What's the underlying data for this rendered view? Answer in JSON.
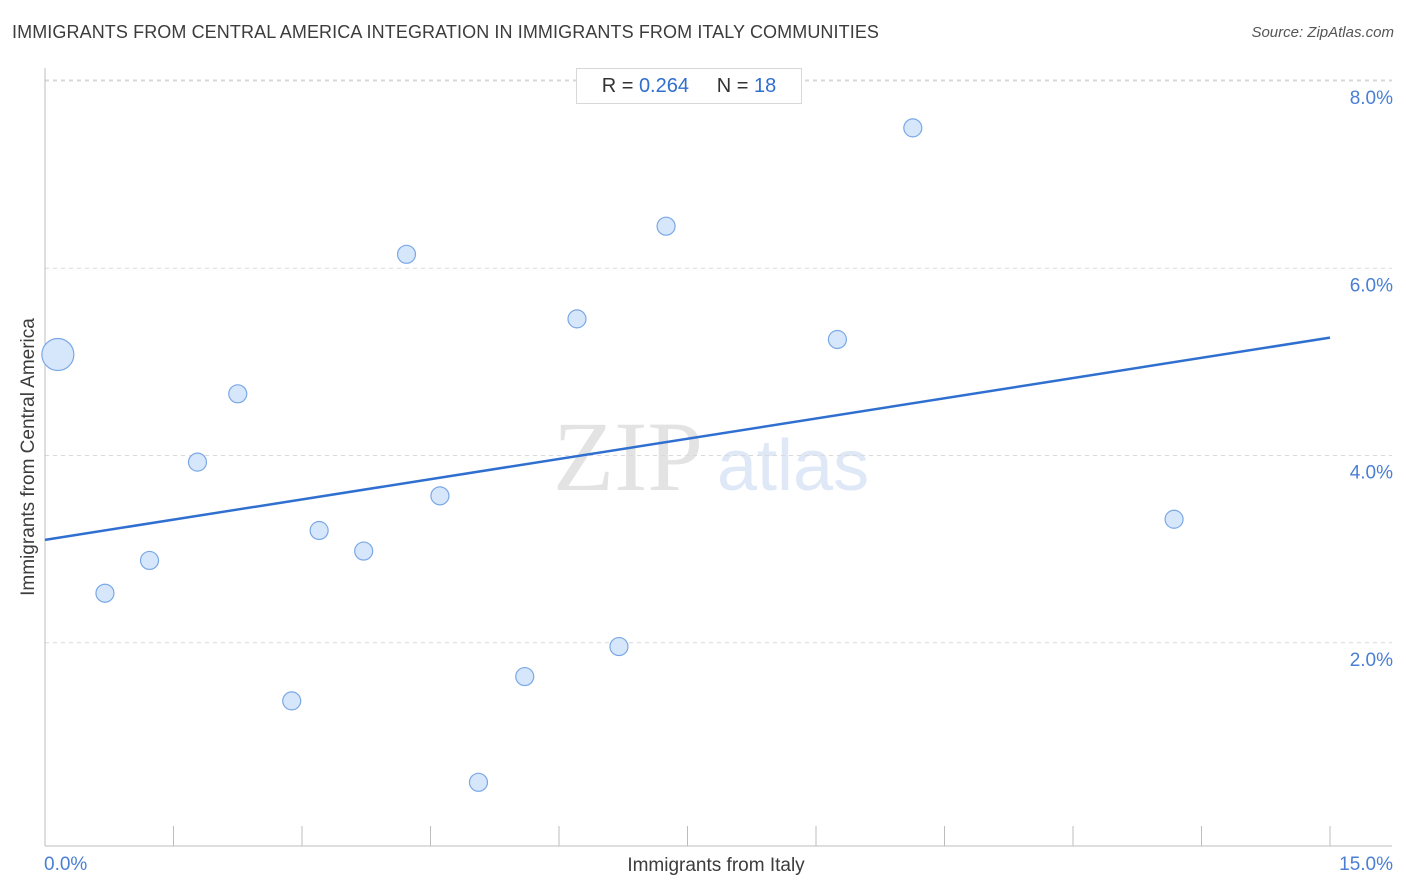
{
  "header": {
    "title": "IMMIGRANTS FROM CENTRAL AMERICA INTEGRATION IN IMMIGRANTS FROM ITALY COMMUNITIES",
    "source": "Source: ZipAtlas.com"
  },
  "stats": {
    "r_label": "R = ",
    "r_value": "0.264",
    "n_label": "N = ",
    "n_value": "18"
  },
  "watermark": {
    "zip": "ZIP",
    "atlas": "atlas"
  },
  "colors": {
    "accent": "#2f6fd0",
    "point_fill": "#d6e6fb",
    "point_stroke": "#7aa8e6",
    "grid": "#d9d9d9"
  },
  "chart_data": {
    "type": "scatter",
    "title": "IMMIGRANTS FROM CENTRAL AMERICA INTEGRATION IN IMMIGRANTS FROM ITALY COMMUNITIES",
    "xlabel": "Immigrants from Italy",
    "ylabel": "Immigrants from Central America",
    "xlim": [
      0,
      15
    ],
    "ylim": [
      0,
      8
    ],
    "x_tick_labels": [
      "0.0%",
      "15.0%"
    ],
    "y_ticks": [
      2,
      4,
      6,
      8
    ],
    "y_tick_labels": [
      "2.0%",
      "4.0%",
      "6.0%",
      "8.0%"
    ],
    "grid": true,
    "points": [
      {
        "x": 0.15,
        "y": 5.25,
        "big": true
      },
      {
        "x": 0.7,
        "y": 2.7
      },
      {
        "x": 1.22,
        "y": 3.05
      },
      {
        "x": 1.78,
        "y": 4.1
      },
      {
        "x": 2.25,
        "y": 4.83
      },
      {
        "x": 2.88,
        "y": 1.55
      },
      {
        "x": 3.2,
        "y": 3.37
      },
      {
        "x": 3.72,
        "y": 3.15
      },
      {
        "x": 4.22,
        "y": 6.32
      },
      {
        "x": 4.61,
        "y": 3.74
      },
      {
        "x": 5.06,
        "y": 0.68
      },
      {
        "x": 5.6,
        "y": 1.81
      },
      {
        "x": 6.21,
        "y": 5.63
      },
      {
        "x": 6.7,
        "y": 2.13
      },
      {
        "x": 7.25,
        "y": 6.62
      },
      {
        "x": 9.25,
        "y": 5.41
      },
      {
        "x": 10.13,
        "y": 7.67
      },
      {
        "x": 13.18,
        "y": 3.49
      }
    ],
    "trendline": {
      "x": [
        0,
        15
      ],
      "y": [
        3.27,
        5.43
      ]
    }
  }
}
